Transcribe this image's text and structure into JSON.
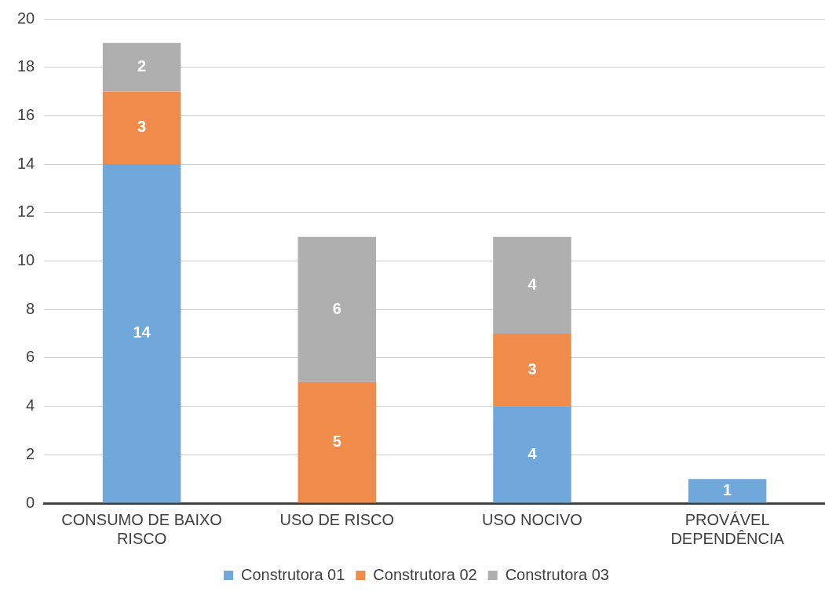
{
  "chart_data": {
    "type": "bar",
    "stacked": true,
    "categories": [
      "CONSUMO DE BAIXO RISCO",
      "USO DE RISCO",
      "USO NOCIVO",
      "PROVÁVEL DEPENDÊNCIA"
    ],
    "series": [
      {
        "name": "Construtora 01",
        "color": "#70a8dc",
        "values": [
          14,
          null,
          4,
          1
        ]
      },
      {
        "name": "Construtora 02",
        "color": "#ef8c4c",
        "values": [
          3,
          5,
          3,
          null
        ]
      },
      {
        "name": "Construtora 03",
        "color": "#afafaf",
        "values": [
          2,
          6,
          4,
          null
        ]
      }
    ],
    "ylim": [
      0,
      20
    ],
    "yticks": [
      0,
      2,
      4,
      6,
      8,
      10,
      12,
      14,
      16,
      18,
      20
    ],
    "grid": "y",
    "legend": "bottom",
    "data_labels": true
  }
}
